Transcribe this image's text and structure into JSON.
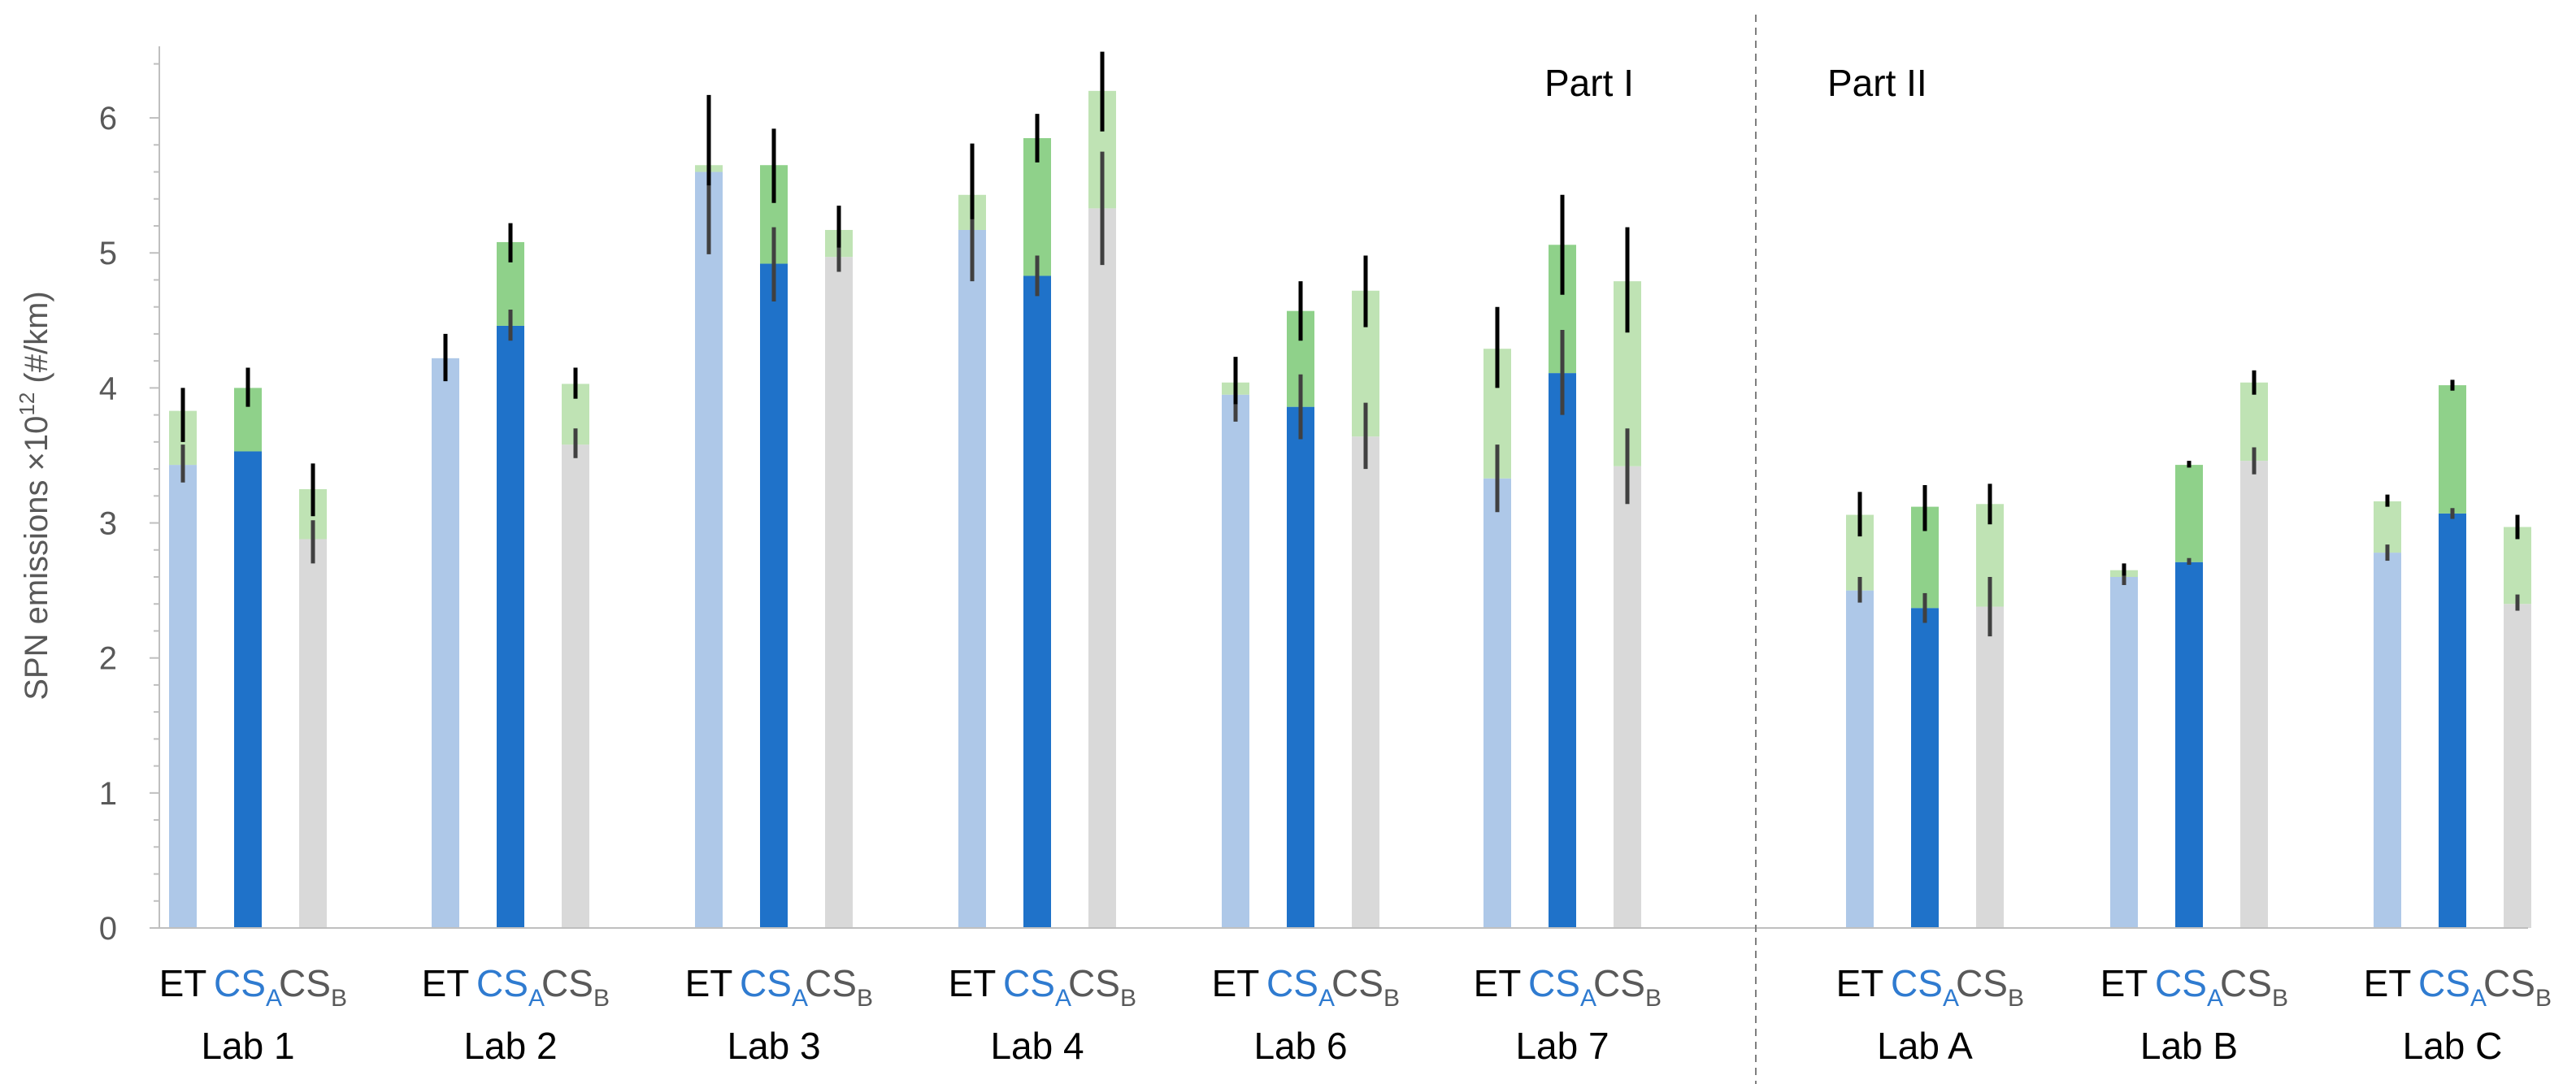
{
  "chart_data": {
    "type": "bar",
    "stacked": true,
    "ylabel_main": "SPN emissions ×10",
    "ylabel_exp": "12",
    "ylabel_unit": "  (#/km)",
    "ylim": [
      0,
      6.5
    ],
    "yticks": [
      "0",
      "1",
      "2",
      "3",
      "4",
      "5",
      "6"
    ],
    "parts": [
      "Part I",
      "Part II"
    ],
    "bar_names": [
      {
        "main": "ET",
        "sub": ""
      },
      {
        "main": "CS",
        "sub": "A"
      },
      {
        "main": "CS",
        "sub": "B"
      }
    ],
    "colors": {
      "ET_base": "#aec8e8",
      "CSA_base": "#1f72c9",
      "CSB_base": "#d9d9d9",
      "ET_top": "#bfe3b4",
      "CSA_top": "#8fd18a",
      "CSB_top": "#bfe3b4",
      "err_top": "#000000",
      "err_base": "#404040",
      "csa_text": "#2f7bd0",
      "csb_text": "#595959"
    },
    "labs": [
      {
        "name": "Lab 1",
        "part": "I",
        "bars": [
          {
            "base": 3.43,
            "total": 3.83,
            "err_base": [
              3.3,
              3.58
            ],
            "err_total": [
              3.6,
              4.0
            ]
          },
          {
            "base": 3.53,
            "total": 4.0,
            "err_base": null,
            "err_total": [
              3.86,
              4.15
            ]
          },
          {
            "base": 2.88,
            "total": 3.25,
            "err_base": [
              2.7,
              3.02
            ],
            "err_total": [
              3.05,
              3.44
            ]
          }
        ]
      },
      {
        "name": "Lab 2",
        "part": "I",
        "bars": [
          {
            "base": 4.22,
            "total": 4.22,
            "err_base": null,
            "err_total": [
              4.05,
              4.4
            ]
          },
          {
            "base": 4.46,
            "total": 5.08,
            "err_base": [
              4.35,
              4.58
            ],
            "err_total": [
              4.93,
              5.22
            ]
          },
          {
            "base": 3.58,
            "total": 4.03,
            "err_base": [
              3.48,
              3.7
            ],
            "err_total": [
              3.92,
              4.15
            ]
          }
        ]
      },
      {
        "name": "Lab 3",
        "part": "I",
        "bars": [
          {
            "base": 5.6,
            "total": 5.65,
            "err_base": [
              4.99,
              5.98
            ],
            "err_total": [
              5.5,
              6.17
            ]
          },
          {
            "base": 4.92,
            "total": 5.65,
            "err_base": [
              4.64,
              5.19
            ],
            "err_total": [
              5.37,
              5.92
            ]
          },
          {
            "base": 4.97,
            "total": 5.17,
            "err_base": [
              4.86,
              5.08
            ],
            "err_total": [
              5.04,
              5.35
            ]
          }
        ]
      },
      {
        "name": "Lab 4",
        "part": "I",
        "bars": [
          {
            "base": 5.17,
            "total": 5.43,
            "err_base": [
              4.79,
              5.55
            ],
            "err_total": [
              5.25,
              5.81
            ]
          },
          {
            "base": 4.83,
            "total": 5.85,
            "err_base": [
              4.68,
              4.98
            ],
            "err_total": [
              5.67,
              6.03
            ]
          },
          {
            "base": 5.33,
            "total": 6.2,
            "err_base": [
              4.91,
              5.75
            ],
            "err_total": [
              5.9,
              6.49
            ]
          }
        ]
      },
      {
        "name": "Lab 6",
        "part": "I",
        "bars": [
          {
            "base": 3.95,
            "total": 4.04,
            "err_base": [
              3.75,
              4.09
            ],
            "err_total": [
              3.88,
              4.23
            ]
          },
          {
            "base": 3.86,
            "total": 4.57,
            "err_base": [
              3.62,
              4.1
            ],
            "err_total": [
              4.35,
              4.79
            ]
          },
          {
            "base": 3.64,
            "total": 4.72,
            "err_base": [
              3.4,
              3.89
            ],
            "err_total": [
              4.45,
              4.98
            ]
          }
        ]
      },
      {
        "name": "Lab 7",
        "part": "I",
        "bars": [
          {
            "base": 3.33,
            "total": 4.29,
            "err_base": [
              3.08,
              3.58
            ],
            "err_total": [
              4.0,
              4.6
            ]
          },
          {
            "base": 4.11,
            "total": 5.06,
            "err_base": [
              3.8,
              4.43
            ],
            "err_total": [
              4.69,
              5.43
            ]
          },
          {
            "base": 3.42,
            "total": 4.79,
            "err_base": [
              3.14,
              3.7
            ],
            "err_total": [
              4.41,
              5.19
            ]
          }
        ]
      },
      {
        "name": "Lab A",
        "part": "II",
        "bars": [
          {
            "base": 2.5,
            "total": 3.06,
            "err_base": [
              2.41,
              2.6
            ],
            "err_total": [
              2.9,
              3.23
            ]
          },
          {
            "base": 2.37,
            "total": 3.12,
            "err_base": [
              2.26,
              2.48
            ],
            "err_total": [
              2.94,
              3.28
            ]
          },
          {
            "base": 2.38,
            "total": 3.14,
            "err_base": [
              2.16,
              2.6
            ],
            "err_total": [
              2.99,
              3.29
            ]
          }
        ]
      },
      {
        "name": "Lab B",
        "part": "II",
        "bars": [
          {
            "base": 2.6,
            "total": 2.65,
            "err_base": [
              2.54,
              2.66
            ],
            "err_total": [
              2.61,
              2.7
            ]
          },
          {
            "base": 2.71,
            "total": 3.43,
            "err_base": [
              2.69,
              2.74
            ],
            "err_total": [
              3.41,
              3.46
            ]
          },
          {
            "base": 3.46,
            "total": 4.04,
            "err_base": [
              3.36,
              3.56
            ],
            "err_total": [
              3.95,
              4.13
            ]
          }
        ]
      },
      {
        "name": "Lab C",
        "part": "II",
        "bars": [
          {
            "base": 2.78,
            "total": 3.16,
            "err_base": [
              2.72,
              2.84
            ],
            "err_total": [
              3.12,
              3.21
            ]
          },
          {
            "base": 3.07,
            "total": 4.02,
            "err_base": [
              3.03,
              3.11
            ],
            "err_total": [
              3.98,
              4.06
            ]
          },
          {
            "base": 2.4,
            "total": 2.97,
            "err_base": [
              2.35,
              2.47
            ],
            "err_total": [
              2.88,
              3.06
            ]
          }
        ]
      }
    ]
  }
}
